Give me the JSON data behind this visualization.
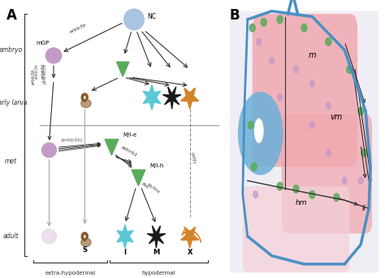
{
  "fig_width": 4.74,
  "fig_height": 3.42,
  "dpi": 100,
  "bg_color": "#ffffff",
  "panel_A_label": "A",
  "panel_B_label": "B",
  "stage_labels": [
    "embryo",
    "early larva",
    "met",
    "adult"
  ],
  "bottom_labels": [
    "extra-hypodermal",
    "hypodermal"
  ],
  "cell_colors": {
    "mGP": "#c49ac6",
    "NC": "#a8c4e0",
    "melanophore_green": "#5aab5a",
    "iridophore_cyan": "#5bc8d4",
    "xanthophore_orange": "#d4842a",
    "melanophore_black": "#1a1a1a",
    "spiracle_brown": "#8B5A2B",
    "adult_ghost": "#e0c8e0"
  },
  "arrow_color": "#333333",
  "label_color": "#333333",
  "gray_line_color": "#aaaaaa",
  "panel_B_colors": {
    "blue_outline": "#4a90c4",
    "pink_muscle": "#f0a8b0",
    "blue_sc": "#6ab0d8",
    "green_cells": "#5aab5a",
    "purple_cells": "#c49ac6",
    "hm_line": "#333333",
    "bg_light": "#f5e8f0"
  }
}
